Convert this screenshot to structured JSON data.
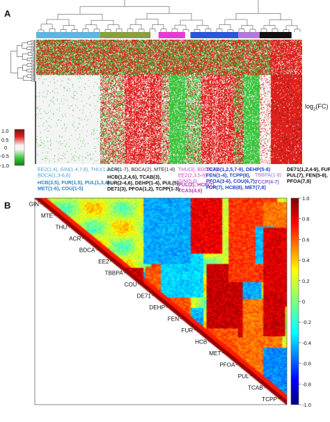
{
  "panel_a": {
    "label": "A",
    "fc_label": "log2(FC)",
    "scale_ticks": [
      "1.0",
      "0.5",
      "0",
      "-0.5",
      "-1.0"
    ],
    "colors": {
      "up": "#e0201c",
      "down": "#3bc43b",
      "neutral": "#f4f4f4",
      "dark": "#1a1a1a"
    },
    "group_bar": [
      {
        "color": "#5fb4e0",
        "w": 0.24
      },
      {
        "color": "#8aa03c",
        "w": 0.19
      },
      {
        "color": "#f7f7f7",
        "w": 0.03
      },
      {
        "color": "#e83ad0",
        "w": 0.1
      },
      {
        "color": "#f7f7f7",
        "w": 0.02
      },
      {
        "color": "#2c56d8",
        "w": 0.18
      },
      {
        "color": "#b07ad6",
        "w": 0.08
      },
      {
        "color": "#111111",
        "w": 0.12
      }
    ],
    "annotations": [
      {
        "lines": [
          "EE2(1,4), GIN(1-4,7,8), THU(1,2,4-8),",
          "BDCA(1,3-6,8)"
        ],
        "color": "#4a9fd0",
        "bold": false
      },
      {
        "lines": [
          "HCB(3,5), FUR(1,5), PUL(1,3,4),",
          "MET(1-6), COU(1-5)"
        ],
        "color": "#2a7fc0",
        "bold": true
      },
      {
        "lines": [
          "ACR(1-7), BDCA(2), MTE(1-8)"
        ],
        "color": "#222222",
        "bold": false
      },
      {
        "lines": [
          "HCB(1,2,4,6), TCAB(3),",
          "FUR(2-4,6), DEHP(1-4), PUL(5),",
          "DE71(3), PFOA(1,2), TCPP(1-3)"
        ],
        "color": "#111111",
        "bold": true
      },
      {
        "lines": [
          "THU(3), BDCA(7),",
          "EE2(2,3,5-8),",
          "GIN(5,6)"
        ],
        "color": "#cc3fc4",
        "bold": false
      },
      {
        "lines": [
          "PUL(2), HCB(7),",
          "TCAS(4,6)"
        ],
        "color": "#b42fb0",
        "bold": true
      },
      {
        "lines": [
          "TCAB(1,2,5,7-9), DEHP(5-8)",
          "FEN(1-4), TCPP(8),",
          "PFOA(3-6), COU(6,7),",
          "FUR(7), HCB(8), MET(7,8)"
        ],
        "color": "#1e40c8",
        "bold": true
      },
      {
        "lines": [
          "TBBPA(1-8)"
        ],
        "color": "#a070d0",
        "bold": false
      },
      {
        "lines": [
          "TCCP(4-7)"
        ],
        "color": "#8a5cc4",
        "bold": true
      },
      {
        "lines": [
          "DE71(1,2,4-9), FUR(8),",
          "PUL(7), FEN(5-8),",
          "PFOA(7,8)"
        ],
        "color": "#111111",
        "bold": true
      }
    ]
  },
  "panel_b": {
    "label": "B",
    "chemicals": [
      "GIN",
      "MTE",
      "THU",
      "ACR",
      "BDCA",
      "EE2",
      "TBBPA",
      "COU",
      "DE71",
      "DEHP",
      "FEN",
      "FUR",
      "HCB",
      "MET",
      "PFOA",
      "PUL",
      "TCAB",
      "TCPP"
    ],
    "colorbar_ticks": [
      "1.0",
      "0.8",
      "0.6",
      "0.4",
      "0.2",
      "0",
      "-0.2",
      "-0.4",
      "-0.6",
      "-0.8",
      "-1.0"
    ]
  }
}
